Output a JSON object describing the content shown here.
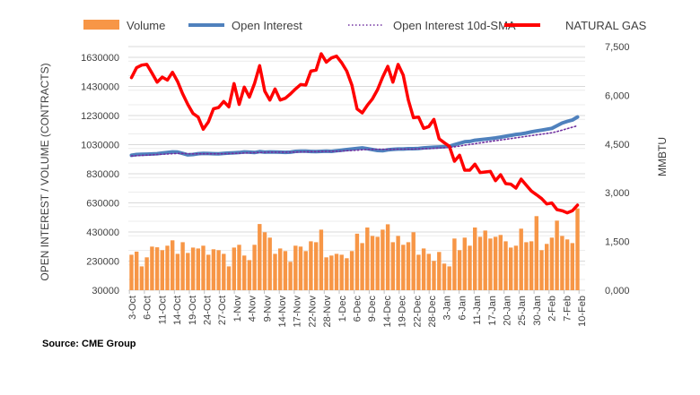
{
  "chart_data": {
    "type": "bar+line",
    "title": "",
    "legend": [
      "Volume",
      "Open Interest",
      "Open Interest 10d-SMA",
      "NATURAL GAS"
    ],
    "legend_position": "top",
    "ylabel_left": "OPEN INTEREST / VOLUME (CONTRACTS)",
    "ylabel_right": "MMBTU",
    "yticks_left": [
      "30000",
      "230000",
      "430000",
      "630000",
      "830000",
      "1030000",
      "1230000",
      "1430000",
      "1630000"
    ],
    "ylim_left": [
      30000,
      1630000
    ],
    "yticks_right": [
      "0,000",
      "1,500",
      "3,000",
      "4,500",
      "6,000",
      "7,500"
    ],
    "ylim_right": [
      0,
      7500
    ],
    "xticks": [
      "3-Oct",
      "6-Oct",
      "11-Oct",
      "14-Oct",
      "19-Oct",
      "24-Oct",
      "27-Oct",
      "1-Nov",
      "4-Nov",
      "9-Nov",
      "14-Nov",
      "17-Nov",
      "22-Nov",
      "28-Nov",
      "1-Dec",
      "6-Dec",
      "9-Dec",
      "14-Dec",
      "19-Dec",
      "22-Dec",
      "28-Dec",
      "3-Jan",
      "6-Jan",
      "11-Jan",
      "17-Jan",
      "20-Jan",
      "25-Jan",
      "30-Jan",
      "2-Feb",
      "7-Feb",
      "10-Feb"
    ],
    "grid": true,
    "series": [
      {
        "name": "Volume",
        "type": "bar",
        "axis": "left",
        "color": "#F79646",
        "values": [
          274000,
          295000,
          194000,
          256000,
          330000,
          325000,
          305000,
          336000,
          373000,
          280000,
          360000,
          286000,
          323000,
          317000,
          336000,
          274000,
          311000,
          305000,
          280000,
          194000,
          323000,
          342000,
          268000,
          237000,
          342000,
          485000,
          428000,
          391000,
          280000,
          317000,
          299000,
          225000,
          336000,
          330000,
          299000,
          366000,
          360000,
          446000,
          256000,
          268000,
          280000,
          274000,
          250000,
          299000,
          418000,
          354000,
          461000,
          403000,
          397000,
          446000,
          483000,
          360000,
          403000,
          342000,
          360000,
          428000,
          274000,
          317000,
          280000,
          231000,
          293000,
          213000,
          194000,
          385000,
          305000,
          391000,
          336000,
          461000,
          397000,
          440000,
          385000,
          397000,
          410000,
          366000,
          323000,
          336000,
          453000,
          360000,
          366000,
          539000,
          305000,
          348000,
          391000,
          508000,
          403000,
          379000,
          354000,
          592000
        ]
      },
      {
        "name": "Open Interest",
        "type": "line",
        "axis": "left",
        "color": "#4F81BD",
        "values": [
          957000,
          962000,
          964000,
          965000,
          966000,
          968000,
          972000,
          976000,
          980000,
          979000,
          970000,
          960000,
          962000,
          968000,
          970000,
          969000,
          968000,
          967000,
          970000,
          972000,
          974000,
          976000,
          980000,
          978000,
          976000,
          982000,
          978000,
          980000,
          979000,
          978000,
          977000,
          978000,
          984000,
          985000,
          985000,
          983000,
          982000,
          984000,
          986000,
          984000,
          988000,
          992000,
          996000,
          1000000,
          1004000,
          1008000,
          1002000,
          996000,
          990000,
          988000,
          994000,
          998000,
          1000000,
          1000000,
          1002000,
          1002000,
          1004000,
          1008000,
          1010000,
          1012000,
          1014000,
          1016000,
          1019000,
          1030000,
          1040000,
          1050000,
          1052000,
          1060000,
          1064000,
          1068000,
          1072000,
          1076000,
          1082000,
          1088000,
          1094000,
          1100000,
          1104000,
          1110000,
          1118000,
          1124000,
          1130000,
          1136000,
          1142000,
          1160000,
          1178000,
          1190000,
          1199000,
          1220000
        ]
      },
      {
        "name": "Open Interest 10d-SMA",
        "type": "line",
        "axis": "left",
        "color": "#7030A0",
        "style": "dotted",
        "values": [
          952000,
          954000,
          956000,
          958000,
          960000,
          962000,
          964000,
          966000,
          968000,
          970000,
          970000,
          968000,
          967000,
          967000,
          967000,
          967000,
          967000,
          967000,
          968000,
          969000,
          970000,
          971000,
          973000,
          974000,
          975000,
          976000,
          977000,
          978000,
          978000,
          978000,
          978000,
          978000,
          979000,
          980000,
          981000,
          982000,
          982000,
          983000,
          984000,
          984000,
          985000,
          986000,
          988000,
          990000,
          992000,
          995000,
          997000,
          998000,
          998000,
          998000,
          998000,
          998000,
          999000,
          999000,
          1000000,
          1000000,
          1001000,
          1002000,
          1003000,
          1005000,
          1007000,
          1009000,
          1011000,
          1015000,
          1020000,
          1026000,
          1031000,
          1036000,
          1042000,
          1047000,
          1052000,
          1057000,
          1062000,
          1067000,
          1072000,
          1077000,
          1082000,
          1087000,
          1092000,
          1097000,
          1102000,
          1107000,
          1112000,
          1120000,
          1130000,
          1140000,
          1150000,
          1160000
        ]
      },
      {
        "name": "NATURAL GAS",
        "type": "line",
        "axis": "right",
        "color": "#FF0000",
        "values": [
          6544,
          6850,
          6930,
          6950,
          6680,
          6406,
          6560,
          6470,
          6710,
          6425,
          6040,
          5720,
          5441,
          5330,
          4955,
          5180,
          5585,
          5625,
          5810,
          5645,
          6360,
          5720,
          6250,
          5946,
          6360,
          6912,
          6130,
          5855,
          6195,
          5855,
          5910,
          6040,
          6195,
          6330,
          6314,
          6745,
          6775,
          7280,
          7020,
          7150,
          7205,
          7004,
          6745,
          6314,
          5580,
          5460,
          5690,
          5890,
          6175,
          6560,
          6890,
          6406,
          6950,
          6620,
          5855,
          5312,
          5330,
          4982,
          5037,
          5257,
          4660,
          4541,
          4430,
          3971,
          4155,
          3695,
          3695,
          3879,
          3620,
          3640,
          3660,
          3373,
          3555,
          3281,
          3265,
          3143,
          3420,
          3235,
          3052,
          2940,
          2820,
          2656,
          2685,
          2482,
          2445,
          2381,
          2445,
          2620
        ]
      }
    ]
  },
  "source": "Source: CME Group"
}
